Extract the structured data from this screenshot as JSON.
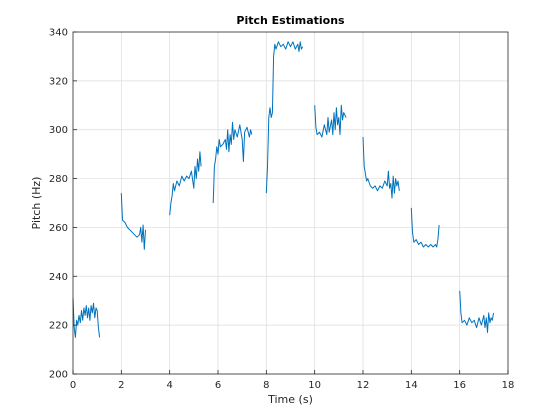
{
  "chart_data": {
    "type": "line",
    "title": "Pitch Estimations",
    "xlabel": "Time (s)",
    "ylabel": "Pitch (Hz)",
    "xlim": [
      0,
      18
    ],
    "ylim": [
      200,
      340
    ],
    "xticks": [
      0,
      2,
      4,
      6,
      8,
      10,
      12,
      14,
      16,
      18
    ],
    "yticks": [
      200,
      220,
      240,
      260,
      280,
      300,
      320,
      340
    ],
    "grid": true,
    "line_color": "#0072bd",
    "series": [
      {
        "segments": [
          [
            [
              0.0,
              231
            ],
            [
              0.05,
              219
            ],
            [
              0.1,
              215
            ],
            [
              0.15,
              222
            ],
            [
              0.2,
              220
            ],
            [
              0.25,
              224
            ],
            [
              0.3,
              221
            ],
            [
              0.35,
              226
            ],
            [
              0.4,
              222
            ],
            [
              0.45,
              227
            ],
            [
              0.5,
              224
            ],
            [
              0.55,
              228
            ],
            [
              0.6,
              223
            ],
            [
              0.65,
              227
            ],
            [
              0.7,
              222
            ],
            [
              0.75,
              228
            ],
            [
              0.8,
              225
            ],
            [
              0.85,
              229
            ],
            [
              0.9,
              223
            ],
            [
              0.95,
              227
            ],
            [
              1.0,
              226
            ],
            [
              1.05,
              219
            ],
            [
              1.1,
              215
            ]
          ],
          [
            [
              2.0,
              274
            ],
            [
              2.05,
              263
            ],
            [
              2.15,
              262
            ],
            [
              2.25,
              260
            ],
            [
              2.35,
              259
            ],
            [
              2.45,
              258
            ],
            [
              2.55,
              257
            ],
            [
              2.65,
              256
            ],
            [
              2.75,
              257
            ],
            [
              2.8,
              260
            ],
            [
              2.85,
              254
            ],
            [
              2.9,
              261
            ],
            [
              2.95,
              251
            ],
            [
              3.0,
              259
            ]
          ],
          [
            [
              4.0,
              265
            ],
            [
              4.05,
              270
            ],
            [
              4.1,
              273
            ],
            [
              4.15,
              278
            ],
            [
              4.2,
              275
            ],
            [
              4.3,
              279
            ],
            [
              4.4,
              277
            ],
            [
              4.5,
              281
            ],
            [
              4.6,
              279
            ],
            [
              4.7,
              281
            ],
            [
              4.8,
              280
            ],
            [
              4.9,
              283
            ],
            [
              5.0,
              276
            ],
            [
              5.05,
              285
            ],
            [
              5.1,
              280
            ],
            [
              5.15,
              288
            ],
            [
              5.2,
              283
            ],
            [
              5.25,
              291
            ],
            [
              5.3,
              285
            ]
          ],
          [
            [
              5.8,
              270
            ],
            [
              5.85,
              285
            ],
            [
              5.9,
              288
            ],
            [
              5.95,
              293
            ],
            [
              6.0,
              290
            ],
            [
              6.05,
              296
            ],
            [
              6.1,
              293
            ],
            [
              6.2,
              294
            ],
            [
              6.3,
              296
            ],
            [
              6.35,
              292
            ],
            [
              6.4,
              300
            ],
            [
              6.45,
              291
            ],
            [
              6.5,
              298
            ],
            [
              6.55,
              294
            ],
            [
              6.6,
              303
            ],
            [
              6.65,
              296
            ],
            [
              6.7,
              300
            ],
            [
              6.8,
              297
            ],
            [
              6.9,
              302
            ],
            [
              7.0,
              296
            ],
            [
              7.05,
              287
            ],
            [
              7.1,
              299
            ],
            [
              7.2,
              301
            ],
            [
              7.3,
              297
            ],
            [
              7.35,
              300
            ],
            [
              7.4,
              298
            ]
          ],
          [
            [
              8.0,
              274
            ],
            [
              8.05,
              285
            ],
            [
              8.1,
              305
            ],
            [
              8.15,
              309
            ],
            [
              8.2,
              305
            ],
            [
              8.25,
              307
            ],
            [
              8.3,
              330
            ],
            [
              8.35,
              335
            ],
            [
              8.4,
              333
            ],
            [
              8.5,
              336
            ],
            [
              8.6,
              334
            ],
            [
              8.7,
              335
            ],
            [
              8.8,
              333
            ],
            [
              8.9,
              336
            ],
            [
              9.0,
              334
            ],
            [
              9.1,
              336
            ],
            [
              9.2,
              333
            ],
            [
              9.3,
              335
            ],
            [
              9.35,
              332
            ],
            [
              9.4,
              336
            ],
            [
              9.45,
              333
            ],
            [
              9.5,
              334
            ]
          ],
          [
            [
              10.0,
              310
            ],
            [
              10.05,
              301
            ],
            [
              10.1,
              298
            ],
            [
              10.2,
              299
            ],
            [
              10.3,
              297
            ],
            [
              10.4,
              302
            ],
            [
              10.5,
              298
            ],
            [
              10.55,
              305
            ],
            [
              10.6,
              299
            ],
            [
              10.7,
              304
            ],
            [
              10.75,
              298
            ],
            [
              10.8,
              307
            ],
            [
              10.85,
              300
            ],
            [
              10.9,
              309
            ],
            [
              10.95,
              302
            ],
            [
              11.0,
              305
            ],
            [
              11.05,
              298
            ],
            [
              11.1,
              310
            ],
            [
              11.15,
              304
            ],
            [
              11.2,
              307
            ],
            [
              11.3,
              305
            ]
          ],
          [
            [
              12.0,
              297
            ],
            [
              12.05,
              285
            ],
            [
              12.1,
              282
            ],
            [
              12.15,
              279
            ],
            [
              12.2,
              280
            ],
            [
              12.3,
              277
            ],
            [
              12.4,
              276
            ],
            [
              12.5,
              277
            ],
            [
              12.6,
              275
            ],
            [
              12.7,
              277
            ],
            [
              12.8,
              276
            ],
            [
              12.9,
              279
            ],
            [
              13.0,
              277
            ],
            [
              13.05,
              283
            ],
            [
              13.1,
              276
            ],
            [
              13.15,
              278
            ],
            [
              13.2,
              272
            ],
            [
              13.25,
              281
            ],
            [
              13.3,
              274
            ],
            [
              13.35,
              280
            ],
            [
              13.4,
              277
            ],
            [
              13.45,
              279
            ],
            [
              13.5,
              275
            ]
          ],
          [
            [
              14.0,
              268
            ],
            [
              14.05,
              258
            ],
            [
              14.1,
              254
            ],
            [
              14.2,
              255
            ],
            [
              14.3,
              253
            ],
            [
              14.4,
              254
            ],
            [
              14.5,
              252
            ],
            [
              14.6,
              253
            ],
            [
              14.7,
              252
            ],
            [
              14.8,
              253
            ],
            [
              14.9,
              252
            ],
            [
              15.0,
              253
            ],
            [
              15.05,
              252
            ],
            [
              15.1,
              255
            ],
            [
              15.15,
              261
            ]
          ],
          [
            [
              16.0,
              234
            ],
            [
              16.05,
              225
            ],
            [
              16.1,
              221
            ],
            [
              16.2,
              222
            ],
            [
              16.3,
              220
            ],
            [
              16.4,
              223
            ],
            [
              16.5,
              221
            ],
            [
              16.6,
              222
            ],
            [
              16.7,
              219
            ],
            [
              16.8,
              223
            ],
            [
              16.9,
              220
            ],
            [
              17.0,
              224
            ],
            [
              17.05,
              219
            ],
            [
              17.1,
              223
            ],
            [
              17.15,
              217
            ],
            [
              17.2,
              225
            ],
            [
              17.25,
              221
            ],
            [
              17.3,
              223
            ],
            [
              17.35,
              222
            ],
            [
              17.4,
              225
            ]
          ]
        ]
      }
    ]
  }
}
